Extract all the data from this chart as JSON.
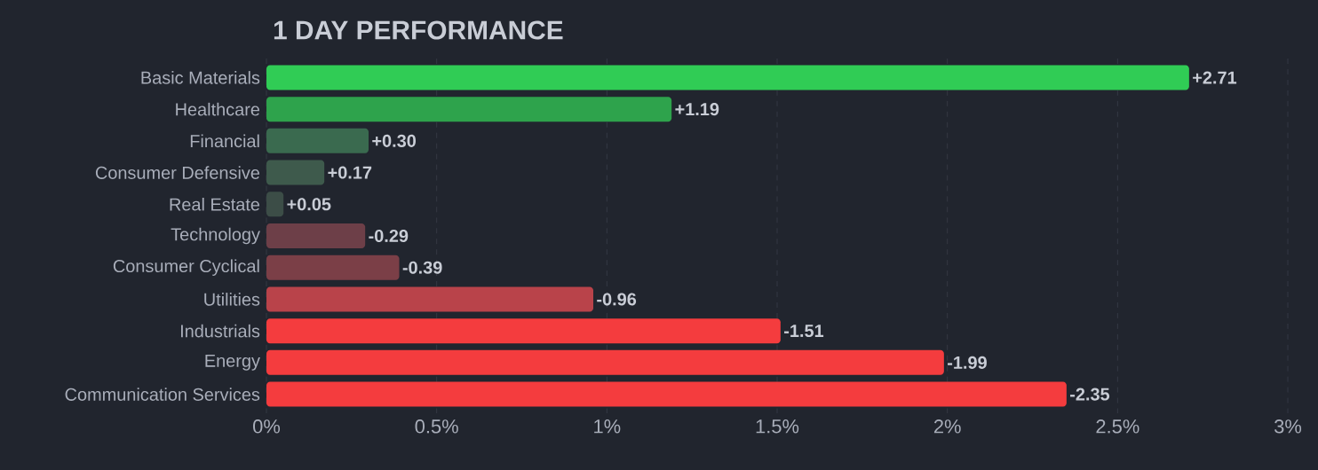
{
  "chart_data": {
    "type": "bar",
    "orientation": "horizontal",
    "title": "1 DAY PERFORMANCE",
    "categories": [
      "Basic Materials",
      "Healthcare",
      "Financial",
      "Consumer Defensive",
      "Real Estate",
      "Technology",
      "Consumer Cyclical",
      "Utilities",
      "Industrials",
      "Energy",
      "Communication Services"
    ],
    "values": [
      2.71,
      1.19,
      0.3,
      0.17,
      0.05,
      -0.29,
      -0.39,
      -0.96,
      -1.51,
      -1.99,
      -2.35
    ],
    "base": [
      0,
      0,
      0,
      0,
      0,
      0.29,
      0.39,
      0.96,
      1.51,
      1.99,
      2.35
    ],
    "value_labels": [
      "+2.71",
      "+1.19",
      "+0.30",
      "+0.17",
      "+0.05",
      "-0.29",
      "-0.39",
      "-0.96",
      "-1.51",
      "-1.99",
      "-2.35"
    ],
    "colors": [
      "#30cc55",
      "#2ea34c",
      "#3a6a4f",
      "#3e5a4c",
      "#3c4d47",
      "#6d3f48",
      "#7b3f47",
      "#b9434a",
      "#f43c3e",
      "#f43c3e",
      "#f43c3e"
    ],
    "xlim": [
      0,
      3
    ],
    "xticks": [
      {
        "value": 0,
        "label": "0%"
      },
      {
        "value": 0.5,
        "label": "0.5%"
      },
      {
        "value": 1,
        "label": "1%"
      },
      {
        "value": 1.5,
        "label": "1.5%"
      },
      {
        "value": 2,
        "label": "2%"
      },
      {
        "value": 2.5,
        "label": "2.5%"
      },
      {
        "value": 3,
        "label": "3%"
      }
    ],
    "grid": "x"
  }
}
